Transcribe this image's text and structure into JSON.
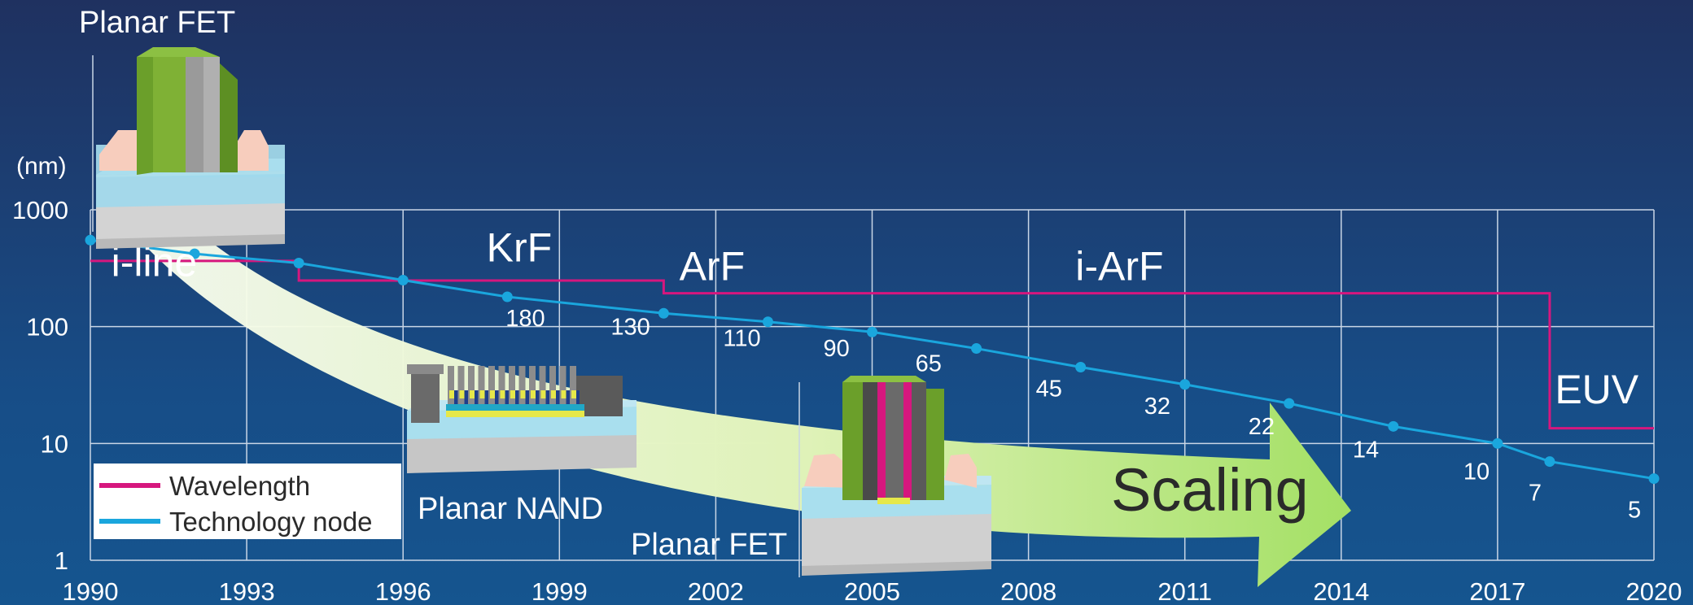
{
  "chart_data": {
    "type": "line",
    "y_unit_label": "(nm)",
    "yscale": "log",
    "ylim": [
      1,
      1000
    ],
    "xlim": [
      1990,
      2020
    ],
    "y_ticks": [
      "1000",
      "100",
      "10",
      "1"
    ],
    "x_ticks": [
      "1990",
      "1993",
      "1996",
      "1999",
      "2002",
      "2005",
      "2008",
      "2011",
      "2014",
      "2017",
      "2020"
    ],
    "grid": true,
    "legend_position": "bottom-left",
    "series": [
      {
        "name": "Wavelength",
        "color": "#d6177e",
        "step": true,
        "points": [
          {
            "x": 1990,
            "y": 365
          },
          {
            "x": 1994,
            "y": 365
          },
          {
            "x": 1994,
            "y": 248
          },
          {
            "x": 2001,
            "y": 248
          },
          {
            "x": 2001,
            "y": 193
          },
          {
            "x": 2018,
            "y": 193
          },
          {
            "x": 2018,
            "y": 13.5
          },
          {
            "x": 2020,
            "y": 13.5
          }
        ],
        "stage_labels": [
          {
            "label": "i-line",
            "x": 1990.4,
            "y": 270
          },
          {
            "label": "KrF",
            "x": 1997.6,
            "y": 360
          },
          {
            "label": "ArF",
            "x": 2001.3,
            "y": 250
          },
          {
            "label": "i-ArF",
            "x": 2008.9,
            "y": 250
          },
          {
            "label": "EUV",
            "x": 2018.1,
            "y": 22
          }
        ]
      },
      {
        "name": "Technology node",
        "color": "#1aa6dd",
        "points": [
          {
            "x": 1990,
            "y": 550,
            "label": ""
          },
          {
            "x": 1992,
            "y": 420,
            "label": ""
          },
          {
            "x": 1994,
            "y": 350,
            "label": ""
          },
          {
            "x": 1996,
            "y": 250,
            "label": ""
          },
          {
            "x": 1998,
            "y": 180,
            "label": "180"
          },
          {
            "x": 2001,
            "y": 130,
            "label": "130"
          },
          {
            "x": 2003,
            "y": 110,
            "label": "110"
          },
          {
            "x": 2005,
            "y": 90,
            "label": "90"
          },
          {
            "x": 2007,
            "y": 65,
            "label": "65"
          },
          {
            "x": 2009,
            "y": 45,
            "label": "45"
          },
          {
            "x": 2011,
            "y": 32,
            "label": "32"
          },
          {
            "x": 2013,
            "y": 22,
            "label": "22"
          },
          {
            "x": 2015,
            "y": 14,
            "label": "14"
          },
          {
            "x": 2017,
            "y": 10,
            "label": "10"
          },
          {
            "x": 2018,
            "y": 7,
            "label": "7"
          },
          {
            "x": 2020,
            "y": 5,
            "label": "5"
          }
        ]
      }
    ]
  },
  "annotations": {
    "scaling_label": "Scaling",
    "device_labels": [
      "Planar FET",
      "Planar NAND",
      "Planar FET"
    ]
  },
  "colors": {
    "grid": "#c9d6e6",
    "text": "#ffffff",
    "arrow_start": "#fbfff0",
    "arrow_end": "#a7e26a",
    "scaling_text": "#2a2a2a"
  }
}
